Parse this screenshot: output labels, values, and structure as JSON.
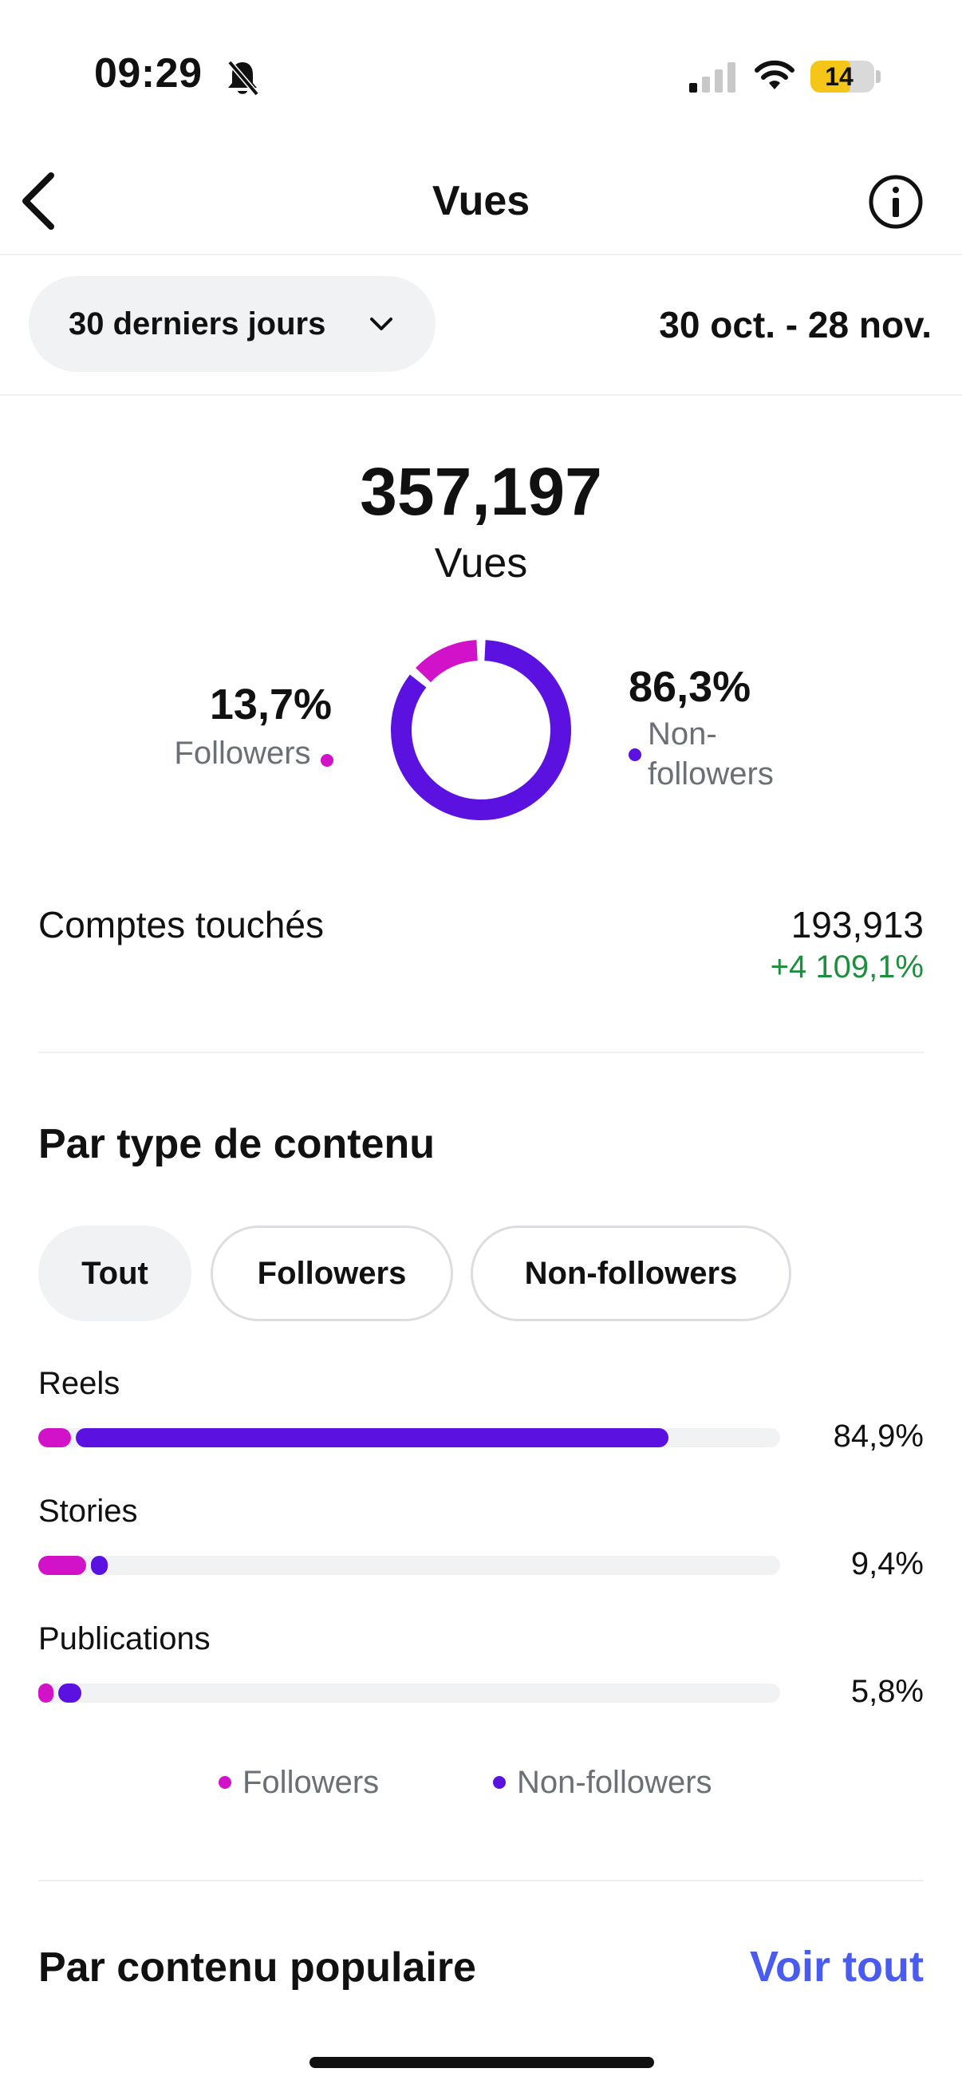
{
  "status_bar": {
    "time": "09:29",
    "battery": "14"
  },
  "header": {
    "title": "Vues"
  },
  "filter": {
    "period_label": "30 derniers jours",
    "date_range": "30 oct. - 28 nov."
  },
  "summary": {
    "total": "357,197",
    "total_label": "Vues",
    "followers_pct": "13,7%",
    "followers_label": "Followers",
    "non_followers_pct": "86,3%",
    "non_followers_label_1": "Non-",
    "non_followers_label_2": "followers",
    "followers_share": 0.137
  },
  "accounts": {
    "label": "Comptes touchés",
    "value": "193,913",
    "change": "+4 109,1%"
  },
  "by_type": {
    "title": "Par type de contenu",
    "chips": [
      "Tout",
      "Followers",
      "Non-followers"
    ],
    "rows": [
      {
        "label": "Reels",
        "pct": "84,9%",
        "followers": 0.047,
        "non_followers": 0.802
      },
      {
        "label": "Stories",
        "pct": "9,4%",
        "followers": 0.068,
        "non_followers": 0.026
      },
      {
        "label": "Publications",
        "pct": "5,8%",
        "followers": 0.024,
        "non_followers": 0.034
      }
    ],
    "legend": [
      "Followers",
      "Non-followers"
    ]
  },
  "popular": {
    "title": "Par contenu populaire",
    "see_all": "Voir tout"
  },
  "colors": {
    "followers": "#d112c8",
    "non_followers": "#5b12e0",
    "positive": "#1a8f3c",
    "link": "#4a5cf0"
  }
}
